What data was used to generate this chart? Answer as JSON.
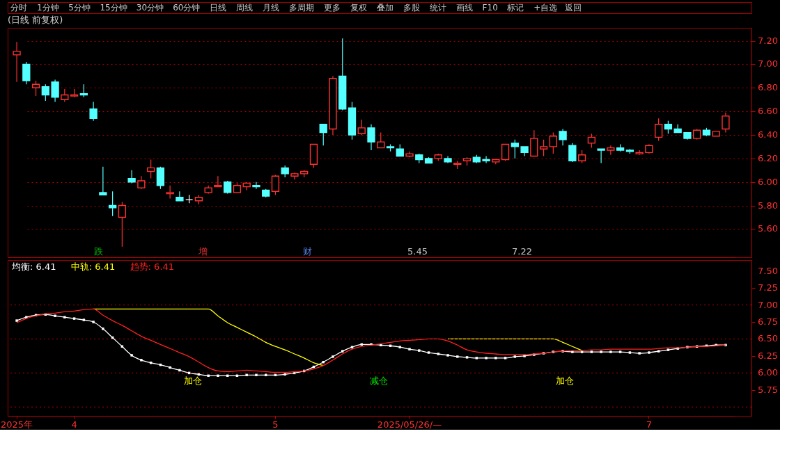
{
  "chart_data": [
    {
      "type": "other",
      "annotations": [
        "分时",
        "1分钟",
        "5分钟",
        "15分钟",
        "30分钟",
        "60分钟",
        "日线",
        "周线",
        "月线",
        "多周期",
        "更多",
        "复权",
        "叠加",
        "多股",
        "统计",
        "画线",
        "F10",
        "标记",
        "+自选",
        "返回"
      ]
    },
    {
      "type": "candlestick",
      "title": "(日线 前复权)",
      "categories": [
        null,
        null,
        null,
        null,
        null,
        null,
        null,
        null,
        null,
        null,
        null,
        null,
        null,
        null,
        null,
        null,
        null,
        null,
        null,
        null,
        null,
        null,
        null,
        null,
        null,
        null,
        null,
        null,
        null,
        null,
        null,
        null,
        null,
        null,
        null,
        null,
        null,
        null,
        null,
        null,
        null,
        null,
        null,
        null,
        null,
        null,
        null,
        null,
        null,
        null,
        null,
        null,
        null,
        null,
        null,
        null,
        null,
        null,
        null,
        null,
        null,
        null,
        null,
        null,
        null,
        null,
        null,
        null,
        null,
        null,
        null,
        null,
        null,
        null,
        null
      ],
      "ohlc": [
        [
          7.08,
          7.19,
          6.85,
          7.11
        ],
        [
          7.0,
          7.02,
          6.83,
          6.86
        ],
        [
          6.8,
          6.86,
          6.73,
          6.83
        ],
        [
          6.81,
          6.83,
          6.69,
          6.74
        ],
        [
          6.85,
          6.87,
          6.68,
          6.72
        ],
        [
          6.7,
          6.79,
          6.68,
          6.74
        ],
        [
          6.73,
          6.79,
          6.72,
          6.74
        ],
        [
          6.75,
          6.83,
          6.72,
          6.74
        ],
        [
          6.62,
          6.68,
          6.52,
          6.54
        ],
        [
          5.91,
          6.13,
          5.89,
          5.89
        ],
        [
          5.8,
          5.92,
          5.71,
          5.78
        ],
        [
          5.7,
          5.83,
          5.45,
          5.8
        ],
        [
          6.03,
          6.1,
          5.99,
          6.0
        ],
        [
          5.95,
          6.05,
          5.94,
          6.01
        ],
        [
          6.09,
          6.19,
          6.03,
          6.12
        ],
        [
          6.12,
          6.13,
          5.94,
          5.97
        ],
        [
          5.9,
          5.97,
          5.86,
          5.91
        ],
        [
          5.87,
          5.92,
          5.84,
          5.84
        ],
        [
          5.85,
          5.89,
          5.82,
          5.85
        ],
        [
          5.84,
          5.89,
          5.81,
          5.87
        ],
        [
          5.91,
          5.97,
          5.9,
          5.95
        ],
        [
          5.96,
          6.05,
          5.96,
          5.97
        ],
        [
          6.0,
          6.01,
          5.9,
          5.91
        ],
        [
          5.91,
          5.99,
          5.91,
          5.97
        ],
        [
          5.96,
          6.0,
          5.93,
          5.99
        ],
        [
          5.97,
          6.0,
          5.94,
          5.96
        ],
        [
          5.93,
          5.94,
          5.87,
          5.88
        ],
        [
          5.92,
          6.06,
          5.89,
          6.05
        ],
        [
          6.12,
          6.14,
          6.04,
          6.07
        ],
        [
          6.05,
          6.08,
          6.02,
          6.07
        ],
        [
          6.07,
          6.1,
          6.04,
          6.09
        ],
        [
          6.15,
          6.32,
          6.12,
          6.32
        ],
        [
          6.49,
          6.49,
          6.31,
          6.42
        ],
        [
          6.45,
          6.9,
          6.4,
          6.88
        ],
        [
          6.9,
          7.22,
          6.61,
          6.62
        ],
        [
          6.63,
          6.68,
          6.36,
          6.4
        ],
        [
          6.41,
          6.53,
          6.4,
          6.46
        ],
        [
          6.46,
          6.49,
          6.27,
          6.34
        ],
        [
          6.29,
          6.42,
          6.29,
          6.34
        ],
        [
          6.3,
          6.32,
          6.26,
          6.29
        ],
        [
          6.28,
          6.32,
          6.22,
          6.22
        ],
        [
          6.22,
          6.26,
          6.21,
          6.24
        ],
        [
          6.23,
          6.24,
          6.16,
          6.19
        ],
        [
          6.2,
          6.21,
          6.16,
          6.16
        ],
        [
          6.2,
          6.24,
          6.18,
          6.23
        ],
        [
          6.2,
          6.22,
          6.16,
          6.17
        ],
        [
          6.15,
          6.18,
          6.11,
          6.16
        ],
        [
          6.18,
          6.21,
          6.14,
          6.2
        ],
        [
          6.21,
          6.23,
          6.16,
          6.17
        ],
        [
          6.19,
          6.22,
          6.16,
          6.18
        ],
        [
          6.17,
          6.19,
          6.15,
          6.19
        ],
        [
          6.19,
          6.32,
          6.18,
          6.32
        ],
        [
          6.33,
          6.36,
          6.2,
          6.3
        ],
        [
          6.3,
          6.3,
          6.22,
          6.25
        ],
        [
          6.22,
          6.44,
          6.22,
          6.37
        ],
        [
          6.28,
          6.36,
          6.22,
          6.3
        ],
        [
          6.3,
          6.42,
          6.24,
          6.39
        ],
        [
          6.43,
          6.45,
          6.31,
          6.36
        ],
        [
          6.31,
          6.33,
          6.17,
          6.18
        ],
        [
          6.18,
          6.27,
          6.16,
          6.23
        ],
        [
          6.33,
          6.41,
          6.29,
          6.38
        ],
        [
          6.28,
          6.28,
          6.16,
          6.27
        ],
        [
          6.27,
          6.31,
          6.23,
          6.29
        ],
        [
          6.29,
          6.32,
          6.26,
          6.27
        ],
        [
          6.27,
          6.28,
          6.24,
          6.26
        ],
        [
          6.24,
          6.27,
          6.23,
          6.25
        ],
        [
          6.25,
          6.32,
          6.24,
          6.31
        ],
        [
          6.38,
          6.54,
          6.35,
          6.49
        ],
        [
          6.49,
          6.52,
          6.41,
          6.45
        ],
        [
          6.45,
          6.49,
          6.42,
          6.42
        ],
        [
          6.42,
          6.42,
          6.36,
          6.37
        ],
        [
          6.37,
          6.45,
          6.36,
          6.44
        ],
        [
          6.44,
          6.46,
          6.39,
          6.4
        ],
        [
          6.39,
          6.43,
          6.39,
          6.43
        ],
        [
          6.45,
          6.59,
          6.42,
          6.56
        ]
      ],
      "colors": [
        "#ff3232",
        "#54ffff",
        "#ff3232",
        "#54ffff",
        "#54ffff",
        "#ff3232",
        "#ff3232",
        "#54ffff",
        "#54ffff",
        "#54ffff",
        "#54ffff",
        "#ff3232",
        "#54ffff",
        "#ff3232",
        "#ff3232",
        "#54ffff",
        "#ff3232",
        "#54ffff",
        "#ffffff",
        "#ff3232",
        "#ff3232",
        "#ff3232",
        "#54ffff",
        "#ff3232",
        "#ff3232",
        "#54ffff",
        "#54ffff",
        "#ff3232",
        "#54ffff",
        "#ff3232",
        "#ff3232",
        "#ff3232",
        "#54ffff",
        "#ff3232",
        "#54ffff",
        "#54ffff",
        "#ff3232",
        "#54ffff",
        "#ff3232",
        "#54ffff",
        "#54ffff",
        "#ff3232",
        "#54ffff",
        "#54ffff",
        "#ff3232",
        "#54ffff",
        "#ff3232",
        "#ff3232",
        "#54ffff",
        "#54ffff",
        "#ff3232",
        "#ff3232",
        "#54ffff",
        "#54ffff",
        "#ff3232",
        "#ff3232",
        "#ff3232",
        "#54ffff",
        "#54ffff",
        "#ff3232",
        "#ff3232",
        "#54ffff",
        "#ff3232",
        "#54ffff",
        "#54ffff",
        "#ff3232",
        "#ff3232",
        "#ff3232",
        "#54ffff",
        "#54ffff",
        "#54ffff",
        "#ff3232",
        "#54ffff",
        "#ff3232",
        "#ff3232"
      ],
      "ylim": [
        5.36,
        7.31
      ],
      "yticks": [
        {
          "value": 5.6,
          "label": "5.60"
        },
        {
          "value": 5.8,
          "label": "5.80"
        },
        {
          "value": 6,
          "label": "6.00"
        },
        {
          "value": 6.2,
          "label": "6.20"
        },
        {
          "value": 6.4,
          "label": "6.40"
        },
        {
          "value": 6.6,
          "label": "6.60"
        },
        {
          "value": 6.8,
          "label": "6.80"
        },
        {
          "value": 7,
          "label": "7.00"
        },
        {
          "value": 7.2,
          "label": "7.20"
        }
      ],
      "grid": "y",
      "tick_labels": "y",
      "annotations": [
        "跌",
        "增",
        "财",
        "5.45",
        "7.22"
      ]
    },
    {
      "type": "line",
      "categories": [
        "2025年",
        null,
        null,
        null,
        null,
        null,
        "4",
        null,
        null,
        null,
        null,
        null,
        null,
        null,
        null,
        null,
        null,
        null,
        null,
        null,
        null,
        null,
        null,
        null,
        null,
        null,
        null,
        "5",
        null,
        null,
        null,
        null,
        null,
        null,
        null,
        null,
        null,
        null,
        null,
        null,
        null,
        "2025/05/26/—",
        null,
        null,
        null,
        null,
        null,
        null,
        null,
        null,
        null,
        null,
        null,
        null,
        null,
        null,
        null,
        null,
        null,
        null,
        null,
        null,
        null,
        null,
        null,
        null,
        "7",
        null,
        null,
        null,
        null,
        null,
        null,
        null,
        null
      ],
      "series": [
        {
          "name": "均衡: 6.41",
          "color": "#ffffff",
          "marker": "square",
          "values": [
            6.77,
            6.82,
            6.85,
            6.86,
            6.84,
            6.82,
            6.8,
            6.78,
            6.75,
            6.65,
            6.52,
            6.39,
            6.26,
            6.19,
            6.15,
            6.12,
            6.08,
            6.04,
            6.0,
            5.98,
            5.96,
            5.96,
            5.96,
            5.96,
            5.97,
            5.97,
            5.97,
            5.97,
            5.98,
            6.0,
            6.03,
            6.09,
            6.16,
            6.24,
            6.32,
            6.38,
            6.42,
            6.42,
            6.41,
            6.4,
            6.38,
            6.35,
            6.33,
            6.3,
            6.28,
            6.26,
            6.24,
            6.23,
            6.22,
            6.22,
            6.22,
            6.22,
            6.24,
            6.25,
            6.27,
            6.29,
            6.31,
            6.32,
            6.31,
            6.31,
            6.31,
            6.31,
            6.31,
            6.31,
            6.3,
            6.29,
            6.3,
            6.32,
            6.34,
            6.36,
            6.38,
            6.39,
            6.4,
            6.41,
            6.41
          ]
        },
        {
          "name": "中轨: 6.41",
          "color": "#ffff00",
          "values": [
            null,
            null,
            null,
            null,
            null,
            null,
            null,
            null,
            6.94,
            6.94,
            6.94,
            6.94,
            6.94,
            6.94,
            6.94,
            6.94,
            6.94,
            6.94,
            6.94,
            6.94,
            6.94,
            6.84,
            6.74,
            6.67,
            6.6,
            6.53,
            6.45,
            6.39,
            6.34,
            6.28,
            6.22,
            6.15,
            6.11,
            null,
            null,
            null,
            null,
            null,
            null,
            null,
            null,
            null,
            null,
            null,
            null,
            6.5,
            6.5,
            6.5,
            6.5,
            6.5,
            6.5,
            6.5,
            6.5,
            6.5,
            6.5,
            6.5,
            6.5,
            6.45,
            6.39,
            6.33,
            null,
            null,
            null,
            null,
            null,
            null,
            null,
            null,
            null,
            null,
            null,
            null,
            null,
            null,
            null
          ]
        },
        {
          "name": "趋势: 6.41",
          "color": "#ff2020",
          "values": [
            6.74,
            6.8,
            6.84,
            6.87,
            6.88,
            6.9,
            6.91,
            6.93,
            6.94,
            6.85,
            6.77,
            6.7,
            6.62,
            6.54,
            6.48,
            6.42,
            6.36,
            6.3,
            6.24,
            6.16,
            6.08,
            6.03,
            6.02,
            6.03,
            6.04,
            6.03,
            6.02,
            6.01,
            6.01,
            6.02,
            6.03,
            6.06,
            6.11,
            6.19,
            6.28,
            6.35,
            6.39,
            6.41,
            6.43,
            6.45,
            6.47,
            6.48,
            6.49,
            6.5,
            6.5,
            6.47,
            6.41,
            6.34,
            6.31,
            6.29,
            6.28,
            6.27,
            6.27,
            6.27,
            6.28,
            6.29,
            6.31,
            6.32,
            6.33,
            6.33,
            6.34,
            6.34,
            6.35,
            6.35,
            6.35,
            6.35,
            6.35,
            6.36,
            6.37,
            6.37,
            6.38,
            6.39,
            6.39,
            6.4,
            6.41
          ]
        }
      ],
      "ylim": [
        5.37,
        7.66
      ],
      "yticks": [
        {
          "value": 5.75,
          "label": "5.75"
        },
        {
          "value": 6,
          "label": "6.00"
        },
        {
          "value": 6.25,
          "label": "6.25"
        },
        {
          "value": 6.5,
          "label": "6.50"
        },
        {
          "value": 6.75,
          "label": "6.75"
        },
        {
          "value": 7,
          "label": "7.00"
        },
        {
          "value": 7.25,
          "label": "7.25"
        },
        {
          "value": 7.5,
          "label": "7.50"
        }
      ],
      "legend": "top left",
      "ref_lines": [
        {
          "axis": "y",
          "value": 7.0,
          "color": "#c00000",
          "line_style": "dotted"
        },
        {
          "axis": "y",
          "value": 6.5,
          "color": "#c00000",
          "line_style": "dotted"
        },
        {
          "axis": "y",
          "value": 6.0,
          "color": "#c00000",
          "line_style": "dotted"
        },
        {
          "axis": "y",
          "value": 5.5,
          "color": "#c00000",
          "line_style": "dotted"
        }
      ],
      "annotations": [
        "加仓",
        "减仓",
        "加仓"
      ]
    }
  ]
}
